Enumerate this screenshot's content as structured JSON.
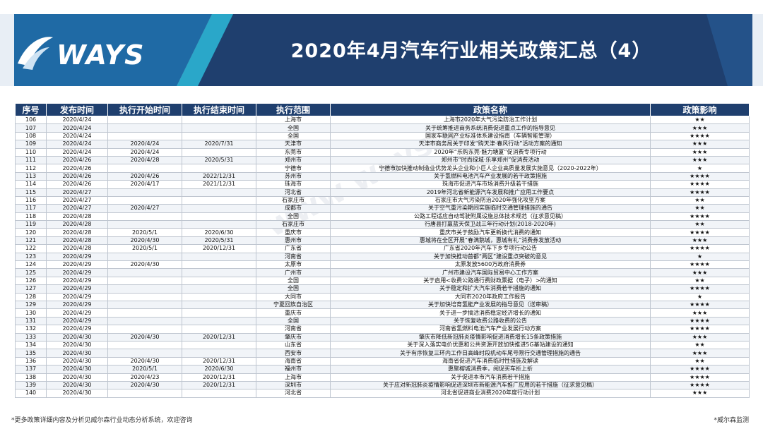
{
  "header": {
    "brand": "WAYS",
    "title": "2020年4月汽车行业相关政策汇总（4）"
  },
  "watermark": "www.ways.cn",
  "colors": {
    "header_blue": "#1f5f9c",
    "dark_navy": "#1f3f6e",
    "accent_teal": "#2aa7c9"
  },
  "table": {
    "columns": [
      "序号",
      "发布时间",
      "执行开始时间",
      "执行结束时间",
      "执行范围",
      "政策名称",
      "政策影响"
    ],
    "rows": [
      [
        "106",
        "2020/4/24",
        "",
        "",
        "上海市",
        "上海市2020年大气污染防治工作计划",
        "★★"
      ],
      [
        "107",
        "2020/4/24",
        "",
        "",
        "全国",
        "关于统筹推进商务系统消费促进重点工作的指导意见",
        "★★★"
      ],
      [
        "108",
        "2020/4/24",
        "",
        "",
        "全国",
        "国家车联网产业标准体系建设指南（车辆智能管理）",
        "★★★★"
      ],
      [
        "109",
        "2020/4/24",
        "2020/4/24",
        "2020/7/31",
        "天津市",
        "天津市商务局关于印发“购天津·春风行动”活动方案的通知",
        "★★★"
      ],
      [
        "110",
        "2020/4/24",
        "2020/4/24",
        "",
        "东莞市",
        "2020年“乐购东莞·魅力塘厦”促消费专项行动",
        "★★★"
      ],
      [
        "111",
        "2020/4/26",
        "2020/4/28",
        "2020/5/31",
        "郑州市",
        "郑州市“时尚绿城·乐享郑州”促消费活动",
        "★★★"
      ],
      [
        "112",
        "2020/4/26",
        "",
        "",
        "宁德市",
        "宁德市加快推动制造业优势龙头企业和小巨人企业高质量发展实施意见（2020-2022年）",
        "★"
      ],
      [
        "113",
        "2020/4/26",
        "2020/4/26",
        "2022/12/31",
        "苏州市",
        "关于氢燃料电池汽车产业发展的若干政策措施",
        "★★★★"
      ],
      [
        "114",
        "2020/4/26",
        "2020/4/17",
        "2021/12/31",
        "珠海市",
        "珠海市促进汽车市场消费升级若干措施",
        "★★★★"
      ],
      [
        "115",
        "2020/4/27",
        "",
        "",
        "河北省",
        "2019年河北省新能源汽车发展和推广应用工作要点",
        "★★★★"
      ],
      [
        "116",
        "2020/4/27",
        "",
        "",
        "石家庄市",
        "石家庄市大气污染防治2020年强化攻坚方案",
        "★★"
      ],
      [
        "117",
        "2020/4/27",
        "2020/4/27",
        "",
        "成都市",
        "关于空气重污染期间实施临时交通管理措施的通告",
        "★★"
      ],
      [
        "118",
        "2020/4/28",
        "",
        "",
        "全国",
        "公路工程适应自动驾驶附属设施总体技术规范（征求意见稿）",
        "★★★★"
      ],
      [
        "119",
        "2020/4/28",
        "",
        "",
        "石家庄市",
        "行唐县打赢蓝天保卫战三年行动计划(2018-2020年)",
        "★★"
      ],
      [
        "120",
        "2020/4/28",
        "2020/5/1",
        "2020/6/30",
        "重庆市",
        "重庆市关于鼓励汽车更新换代消费的通知",
        "★★★★"
      ],
      [
        "121",
        "2020/4/28",
        "2020/4/30",
        "2020/5/31",
        "惠州市",
        "惠城将在全区开展“春满鹅城，惠城有礼”消费券发放活动",
        "★★★"
      ],
      [
        "122",
        "2020/4/28",
        "2020/5/1",
        "2020/12/31",
        "广东省",
        "广东省2020年汽车下乡专项行动公告",
        "★★★★"
      ],
      [
        "123",
        "2020/4/29",
        "",
        "",
        "河南省",
        "关于加快推动首都“两区”建设重点突破的意见",
        "★"
      ],
      [
        "124",
        "2020/4/29",
        "2020/4/30",
        "",
        "太原市",
        "太原发放5600万政府消费券",
        "★★★★"
      ],
      [
        "125",
        "2020/4/29",
        "",
        "",
        "广州市",
        "广州市建设汽车国际贸易中心工作方案",
        "★★★"
      ],
      [
        "126",
        "2020/4/29",
        "",
        "",
        "全国",
        "关于启用<收费公路通行费财政票据（电子）>的通知",
        "★★"
      ],
      [
        "127",
        "2020/4/29",
        "",
        "",
        "全国",
        "关于稳定和扩大汽车消费若干措施的通知",
        "★★★★"
      ],
      [
        "128",
        "2020/4/29",
        "",
        "",
        "大同市",
        "大同市2020年政府工作报告",
        "★"
      ],
      [
        "129",
        "2020/4/29",
        "",
        "",
        "宁夏回族自治区",
        "关于加快培育氢能产业发展的指导意见（送审稿）",
        "★★★★"
      ],
      [
        "130",
        "2020/4/29",
        "",
        "",
        "重庆市",
        "关于进一步搞活消费稳定经济增长的通知",
        "★★★"
      ],
      [
        "131",
        "2020/4/29",
        "",
        "",
        "全国",
        "关于恢复收费公路收费的公告",
        "★★★★"
      ],
      [
        "132",
        "2020/4/29",
        "",
        "",
        "河南省",
        "河南省氢燃料电池汽车产业发展行动方案",
        "★★★★"
      ],
      [
        "133",
        "2020/4/30",
        "2020/4/30",
        "2020/12/31",
        "肇庆市",
        "肇庆市降低新冠肺炎疫情影响促进消费增长15条政策措施",
        "★★★"
      ],
      [
        "134",
        "2020/4/30",
        "",
        "",
        "山东省",
        "关于深入落实电价优惠和公共资源开放加快推进5G基站建设的通知",
        "★★"
      ],
      [
        "135",
        "2020/4/30",
        "",
        "",
        "西安市",
        "关于有序恢复三环内工作日高峰时段机动车尾号限行交通管理措施的通告",
        "★★★"
      ],
      [
        "136",
        "2020/4/30",
        "2020/4/30",
        "2020/12/31",
        "海南省",
        "海南省促进汽车消费临时性措施及解读",
        "★★"
      ],
      [
        "137",
        "2020/4/30",
        "2020/5/1",
        "2020/6/30",
        "福州市",
        "惠聚榕城消费季，阅促买车折上折",
        "★★★★"
      ],
      [
        "138",
        "2020/4/30",
        "2020/4/23",
        "2020/12/31",
        "上海市",
        "关于促进本市汽车消费若干措施",
        "★★★★"
      ],
      [
        "139",
        "2020/4/30",
        "2020/4/30",
        "2020/12/31",
        "深圳市",
        "关于应对新冠肺炎疫情影响促进深圳市新能源汽车推广应用的若干措施（征求意见稿）",
        "★★★★"
      ],
      [
        "140",
        "2020/4/30",
        "",
        "",
        "河北省",
        "河北省促进商业消费2020年度行动计划",
        "★★★"
      ]
    ]
  },
  "footer": {
    "left": "*更多政策详细内容及分析见威尔森行业动态分析系统，欢迎咨询",
    "right": "*威尔森监测"
  }
}
